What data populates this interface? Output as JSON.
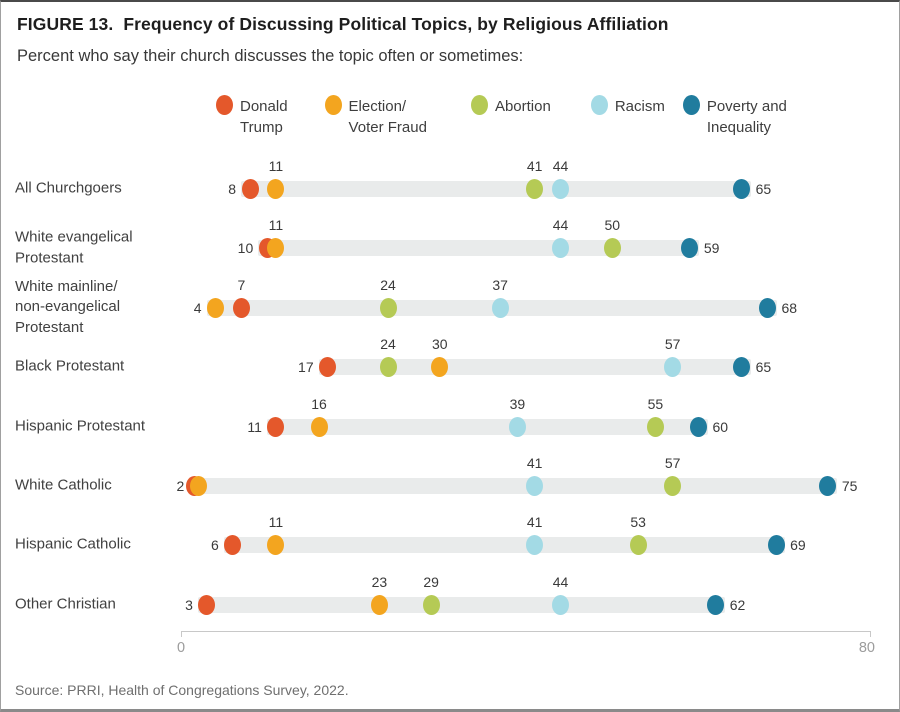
{
  "figure": {
    "title_prefix": "FIGURE 13.",
    "title": "Frequency of Discussing Political Topics, by Religious Affiliation",
    "subtitle": "Percent who say their church discusses the topic often or sometimes:",
    "source": "Source: PRRI, Health of Congregations Survey, 2022."
  },
  "colors": {
    "trump": "#E4582B",
    "election": "#F3A51F",
    "abortion": "#B5CA55",
    "racism": "#A3DAE5",
    "poverty": "#207C9E",
    "track": "#E9EBEB"
  },
  "chart_data": {
    "type": "dot-plot",
    "xlim": [
      0,
      80
    ],
    "x_tick_labels": [
      "0",
      "80"
    ],
    "grid": false,
    "legend_position": "top",
    "series": [
      {
        "key": "trump",
        "label": "Donald\nTrump",
        "color": "#E4582B"
      },
      {
        "key": "election",
        "label": "Election/\nVoter Fraud",
        "color": "#F3A51F"
      },
      {
        "key": "abortion",
        "label": "Abortion",
        "color": "#B5CA55"
      },
      {
        "key": "racism",
        "label": "Racism",
        "color": "#A3DAE5"
      },
      {
        "key": "poverty",
        "label": "Poverty and\nInequality",
        "color": "#207C9E"
      }
    ],
    "rows": [
      {
        "label": "All Churchgoers",
        "points": [
          {
            "series": "trump",
            "value": 8,
            "label_side": "left"
          },
          {
            "series": "election",
            "value": 11,
            "label_side": "top"
          },
          {
            "series": "abortion",
            "value": 41,
            "label_side": "top"
          },
          {
            "series": "racism",
            "value": 44,
            "label_side": "top"
          },
          {
            "series": "poverty",
            "value": 65,
            "label_side": "right"
          }
        ]
      },
      {
        "label": "White evangelical\nProtestant",
        "points": [
          {
            "series": "trump",
            "value": 10,
            "label_side": "left"
          },
          {
            "series": "election",
            "value": 11,
            "label_side": "top"
          },
          {
            "series": "racism",
            "value": 44,
            "label_side": "top"
          },
          {
            "series": "abortion",
            "value": 50,
            "label_side": "top"
          },
          {
            "series": "poverty",
            "value": 59,
            "label_side": "right"
          }
        ]
      },
      {
        "label": "White mainline/\nnon-evangelical\nProtestant",
        "points": [
          {
            "series": "election",
            "value": 4,
            "label_side": "left"
          },
          {
            "series": "trump",
            "value": 7,
            "label_side": "top"
          },
          {
            "series": "abortion",
            "value": 24,
            "label_side": "top"
          },
          {
            "series": "racism",
            "value": 37,
            "label_side": "top"
          },
          {
            "series": "poverty",
            "value": 68,
            "label_side": "right"
          }
        ]
      },
      {
        "label": "Black Protestant",
        "points": [
          {
            "series": "trump",
            "value": 17,
            "label_side": "left"
          },
          {
            "series": "abortion",
            "value": 24,
            "label_side": "top"
          },
          {
            "series": "election",
            "value": 30,
            "label_side": "top"
          },
          {
            "series": "racism",
            "value": 57,
            "label_side": "top"
          },
          {
            "series": "poverty",
            "value": 65,
            "label_side": "right"
          }
        ]
      },
      {
        "label": "Hispanic Protestant",
        "points": [
          {
            "series": "trump",
            "value": 11,
            "label_side": "left"
          },
          {
            "series": "election",
            "value": 16,
            "label_side": "top"
          },
          {
            "series": "racism",
            "value": 39,
            "label_side": "top"
          },
          {
            "series": "abortion",
            "value": 55,
            "label_side": "top"
          },
          {
            "series": "poverty",
            "value": 60,
            "label_side": "right"
          }
        ]
      },
      {
        "label": "White Catholic",
        "points": [
          {
            "series": "trump",
            "value": 2,
            "label_side": "none"
          },
          {
            "series": "election",
            "value": 2,
            "label_side": "left"
          },
          {
            "series": "racism",
            "value": 41,
            "label_side": "top"
          },
          {
            "series": "abortion",
            "value": 57,
            "label_side": "top"
          },
          {
            "series": "poverty",
            "value": 75,
            "label_side": "right"
          }
        ]
      },
      {
        "label": "Hispanic Catholic",
        "points": [
          {
            "series": "trump",
            "value": 6,
            "label_side": "left"
          },
          {
            "series": "election",
            "value": 11,
            "label_side": "top"
          },
          {
            "series": "racism",
            "value": 41,
            "label_side": "top"
          },
          {
            "series": "abortion",
            "value": 53,
            "label_side": "top"
          },
          {
            "series": "poverty",
            "value": 69,
            "label_side": "right"
          }
        ]
      },
      {
        "label": "Other Christian",
        "points": [
          {
            "series": "trump",
            "value": 3,
            "label_side": "left"
          },
          {
            "series": "election",
            "value": 23,
            "label_side": "top"
          },
          {
            "series": "abortion",
            "value": 29,
            "label_side": "top"
          },
          {
            "series": "racism",
            "value": 44,
            "label_side": "top"
          },
          {
            "series": "poverty",
            "value": 62,
            "label_side": "right"
          }
        ]
      }
    ]
  }
}
